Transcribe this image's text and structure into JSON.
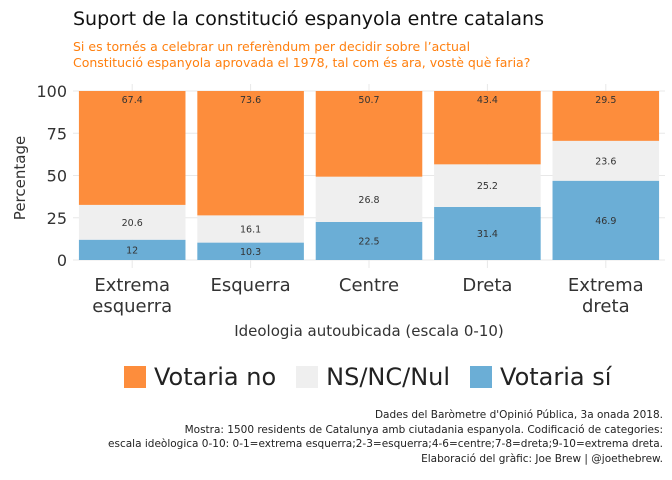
{
  "title": "Suport de la constitució espanyola entre catalans",
  "subtitle": "Si es tornés a celebrar un referèndum per decidir sobre l’actual\nConstitució espanyola aprovada el 1978, tal com és ara, vostè què faria?",
  "caption": [
    "Dades del Baròmetre d'Opinió Pública, 3a onada 2018.",
    "Mostra: 1500 residents de Catalunya amb ciutadania espanyola. Codificació de categories:",
    "escala ideòlogica 0-10: 0-1=extrema esquerra;2-3=esquerra;4-6=centre;7-8=dreta;9-10=extrema dreta.",
    "Elaboració del gràfic: Joe Brew | @joethebrew."
  ],
  "chart_data": {
    "type": "bar",
    "stacked": true,
    "xlabel": "Ideologia autoubicada (escala 0-10)",
    "ylabel": "Percentage",
    "ylim": [
      0,
      100
    ],
    "yticks": [
      0,
      25,
      50,
      75,
      100
    ],
    "grid": true,
    "legend_position": "bottom",
    "categories": [
      "Extrema\nesquerra",
      "Esquerra",
      "Centre",
      "Dreta",
      "Extrema\ndreta"
    ],
    "series": [
      {
        "name": "Votaria sí",
        "color": "#6baed6",
        "values": [
          12,
          10.3,
          22.5,
          31.4,
          46.9
        ],
        "labels": [
          "12",
          "10.3",
          "22.5",
          "31.4",
          "46.9"
        ]
      },
      {
        "name": "NS/NC/Nul",
        "color": "#efefef",
        "values": [
          20.6,
          16.1,
          26.8,
          25.2,
          23.6
        ],
        "labels": [
          "20.6",
          "16.1",
          "26.8",
          "25.2",
          "23.6"
        ]
      },
      {
        "name": "Votaria no",
        "color": "#fd8d3c",
        "values": [
          67.4,
          73.6,
          50.7,
          43.4,
          29.5
        ],
        "labels": [
          "67.4",
          "73.6",
          "50.7",
          "43.4",
          "29.5"
        ]
      }
    ],
    "legend_order": [
      "Votaria no",
      "NS/NC/Nul",
      "Votaria sí"
    ]
  }
}
